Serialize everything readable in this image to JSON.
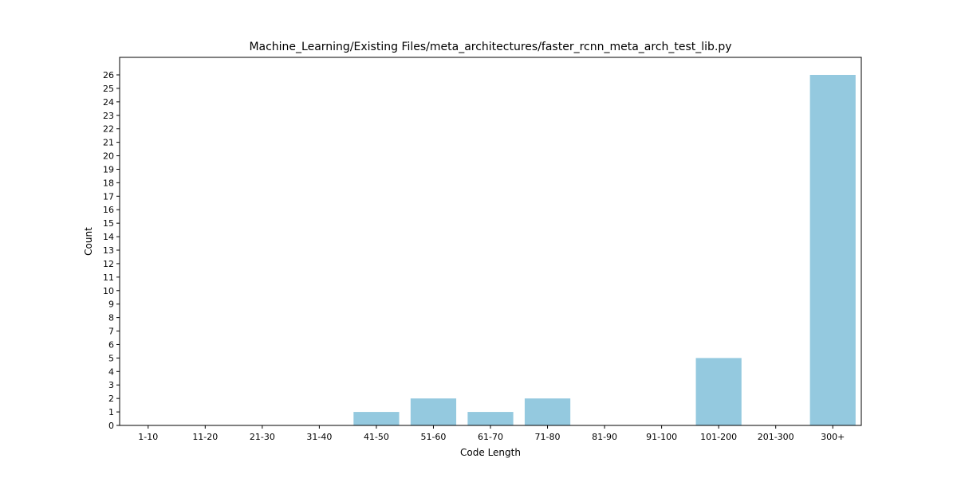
{
  "chart_data": {
    "type": "bar",
    "title": "Machine_Learning/Existing Files/meta_architectures/faster_rcnn_meta_arch_test_lib.py",
    "xlabel": "Code Length",
    "ylabel": "Count",
    "categories": [
      "1-10",
      "11-20",
      "21-30",
      "31-40",
      "41-50",
      "51-60",
      "61-70",
      "71-80",
      "81-90",
      "91-100",
      "101-200",
      "201-300",
      "300+"
    ],
    "values": [
      0,
      0,
      0,
      0,
      1,
      2,
      1,
      2,
      0,
      0,
      5,
      0,
      26
    ],
    "ylim": [
      0,
      27.3
    ],
    "yticks": [
      0,
      1,
      2,
      3,
      4,
      5,
      6,
      7,
      8,
      9,
      10,
      11,
      12,
      13,
      14,
      15,
      16,
      17,
      18,
      19,
      20,
      21,
      22,
      23,
      24,
      25,
      26
    ],
    "bar_color": "#94c9df",
    "grid": false,
    "legend": "none"
  }
}
